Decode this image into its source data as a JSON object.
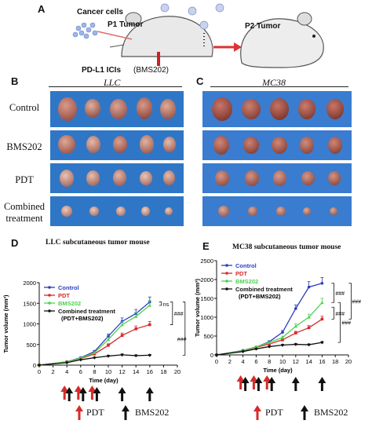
{
  "panel_a": {
    "letter": "A",
    "cancer_cells": "Cancer cells",
    "p1": "P1 Tumor",
    "p2": "P2 Tumor",
    "treatment_bold": "PD-L1 ICIs",
    "treatment_plain": "(BMS202)"
  },
  "panel_b": {
    "letter": "B",
    "title": "LLC"
  },
  "panel_c": {
    "letter": "C",
    "title": "MC38"
  },
  "row_labels": [
    "Control",
    "BMS202",
    "PDT",
    "Combined",
    "treatment"
  ],
  "panel_d": {
    "letter": "D",
    "title": "LLC subcutaneous tumor  mouse"
  },
  "panel_e": {
    "letter": "E",
    "title": "MC38 subcutaneous tumor mouse"
  },
  "legend": {
    "control": "Control",
    "pdt": "PDT",
    "bms": "BMS202",
    "combined": "Combined treatment",
    "combined2": "(PDT+BMS202)"
  },
  "bottom_legend": {
    "pdt": "PDT",
    "bms": "BMS202"
  },
  "colors": {
    "control": "#2b3fbf",
    "pdt": "#d62a2a",
    "bms": "#4fd14f",
    "combined": "#111111",
    "photo_bg": "#2f77c6"
  },
  "chart_data": [
    {
      "type": "line",
      "title": "LLC subcutaneous tumor  mouse",
      "xlabel": "Time (day)",
      "ylabel": "Tumor volume (mm³)",
      "xlim": [
        0,
        20
      ],
      "ylim": [
        0,
        2000
      ],
      "xticks": [
        "0",
        "2",
        "4",
        "6",
        "8",
        "10",
        "12",
        "14",
        "16",
        "18",
        "20"
      ],
      "yticks": [
        "0",
        "500",
        "1000",
        "1500",
        "2000"
      ],
      "x": [
        0,
        4,
        6,
        8,
        10,
        12,
        14,
        16
      ],
      "series": [
        {
          "name": "Control",
          "values": [
            0,
            80,
            180,
            330,
            700,
            1060,
            1250,
            1530
          ]
        },
        {
          "name": "PDT",
          "values": [
            0,
            80,
            160,
            270,
            480,
            720,
            880,
            980
          ]
        },
        {
          "name": "BMS202",
          "values": [
            0,
            80,
            170,
            300,
            620,
            980,
            1180,
            1450
          ]
        },
        {
          "name": "Combined treatment (PDT+BMS202)",
          "values": [
            0,
            60,
            130,
            180,
            220,
            250,
            230,
            240
          ]
        }
      ],
      "annotations": {
        "sig1": "ns",
        "sig2": "###",
        "sig3": "###"
      },
      "pdt_days": [
        4,
        6,
        8
      ],
      "bms_days": [
        4,
        6,
        8,
        12,
        16
      ]
    },
    {
      "type": "line",
      "title": "MC38 subcutaneous tumor mouse",
      "xlabel": "Time (day)",
      "ylabel": "Tumor volume (mm³)",
      "xlim": [
        0,
        20
      ],
      "ylim": [
        0,
        2500
      ],
      "xticks": [
        "0",
        "2",
        "4",
        "6",
        "8",
        "10",
        "12",
        "14",
        "16",
        "18",
        "20"
      ],
      "yticks": [
        "0",
        "500",
        "1000",
        "1500",
        "2000",
        "2500"
      ],
      "x": [
        0,
        4,
        6,
        8,
        10,
        12,
        14,
        16
      ],
      "series": [
        {
          "name": "Control",
          "values": [
            0,
            120,
            210,
            350,
            600,
            1230,
            1800,
            1900
          ]
        },
        {
          "name": "PDT",
          "values": [
            0,
            110,
            200,
            290,
            400,
            580,
            720,
            950
          ]
        },
        {
          "name": "BMS202",
          "values": [
            0,
            115,
            210,
            330,
            460,
            760,
            1000,
            1390
          ]
        },
        {
          "name": "Combined treatment (PDT+BMS202)",
          "values": [
            0,
            90,
            160,
            220,
            260,
            280,
            270,
            330
          ]
        }
      ],
      "annotations": {
        "sig1": "###",
        "sig2": "###",
        "sig3": "###",
        "sig4": "###"
      },
      "pdt_days": [
        4,
        6,
        8
      ],
      "bms_days": [
        4,
        6,
        8,
        12,
        16
      ]
    }
  ]
}
